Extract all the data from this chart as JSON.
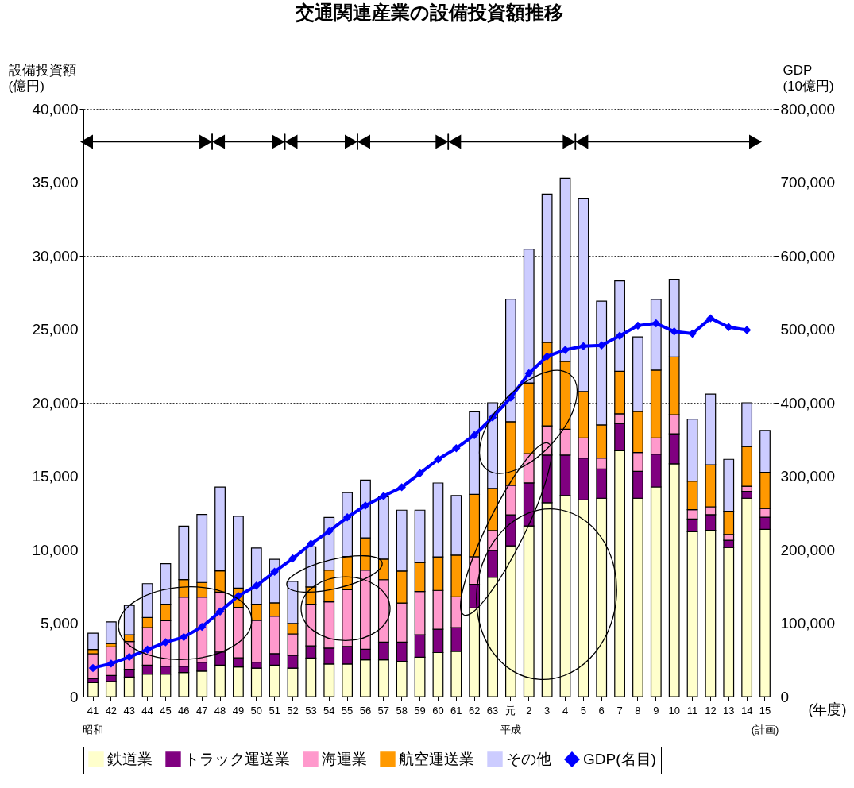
{
  "chart_data": {
    "type": "bar",
    "title": "交通関連産業の設備投資額推移",
    "ylabel": "設備投資額\n(億円)",
    "y2label": "GDP\n(10億円)",
    "xlabel": "(年度)",
    "categories": [
      "41",
      "42",
      "43",
      "44",
      "45",
      "46",
      "47",
      "48",
      "49",
      "50",
      "51",
      "52",
      "53",
      "54",
      "55",
      "56",
      "57",
      "58",
      "59",
      "60",
      "61",
      "62",
      "63",
      "元",
      "2",
      "3",
      "4",
      "5",
      "6",
      "7",
      "8",
      "9",
      "10",
      "11",
      "12",
      "13",
      "14",
      "15"
    ],
    "stacked": true,
    "ylim": [
      0,
      40000
    ],
    "yticks": [
      {
        "value": 0,
        "label": "0"
      },
      {
        "value": 5000,
        "label": "5,000"
      },
      {
        "value": 10000,
        "label": "10,000"
      },
      {
        "value": 15000,
        "label": "15,000"
      },
      {
        "value": 20000,
        "label": "20,000"
      },
      {
        "value": 25000,
        "label": "25,000"
      },
      {
        "value": 30000,
        "label": "30,000"
      },
      {
        "value": 35000,
        "label": "35,000"
      },
      {
        "value": 40000,
        "label": "40,000"
      }
    ],
    "y2lim": [
      0,
      800000
    ],
    "y2ticks": [
      {
        "value": 0,
        "label": "0"
      },
      {
        "value": 100000,
        "label": "100,000"
      },
      {
        "value": 200000,
        "label": "200,000"
      },
      {
        "value": 300000,
        "label": "300,000"
      },
      {
        "value": 400000,
        "label": "400,000"
      },
      {
        "value": 500000,
        "label": "500,000"
      },
      {
        "value": 600000,
        "label": "600,000"
      },
      {
        "value": 700000,
        "label": "700,000"
      },
      {
        "value": 800000,
        "label": "800,000"
      }
    ],
    "grid": "y",
    "legend": "bottom",
    "marker": "diamond",
    "line_style": "solid",
    "series": [
      {
        "name": "鉄道業",
        "color": "#ffffcc",
        "values": [
          950,
          1030,
          1330,
          1530,
          1530,
          1640,
          1740,
          2140,
          2020,
          1940,
          2140,
          1940,
          2630,
          2220,
          2220,
          2510,
          2510,
          2400,
          2680,
          3000,
          3090,
          6040,
          8130,
          10260,
          11620,
          13200,
          13690,
          13380,
          13500,
          16740,
          13500,
          14270,
          15850,
          11220,
          11320,
          10150,
          13500,
          11390
        ]
      },
      {
        "name": "トラック運送業",
        "color": "#800080",
        "values": [
          290,
          410,
          530,
          610,
          540,
          430,
          610,
          900,
          620,
          410,
          790,
          870,
          820,
          1080,
          1200,
          710,
          1200,
          1310,
          1530,
          1590,
          1610,
          1610,
          1820,
          2110,
          2930,
          3240,
          2750,
          2860,
          1990,
          1850,
          1830,
          2230,
          2040,
          870,
          1060,
          490,
          470,
          820
        ]
      },
      {
        "name": "海運業",
        "color": "#ff99cc",
        "values": [
          1680,
          1940,
          1890,
          2560,
          3100,
          4700,
          4420,
          4070,
          3430,
          2840,
          2550,
          1460,
          2840,
          3150,
          3860,
          5400,
          4250,
          2660,
          2950,
          2640,
          2090,
          1870,
          1350,
          2020,
          1990,
          1990,
          1760,
          1360,
          750,
          660,
          1290,
          1100,
          1290,
          630,
          540,
          400,
          350,
          590
        ]
      },
      {
        "name": "航空運送業",
        "color": "#ff9900",
        "values": [
          290,
          230,
          460,
          690,
          1120,
          1200,
          1000,
          1450,
          1310,
          1100,
          900,
          710,
          1180,
          2170,
          2250,
          2180,
          1400,
          2180,
          1970,
          2280,
          2840,
          4240,
          2870,
          4320,
          4810,
          5680,
          4620,
          3170,
          2250,
          2890,
          2790,
          4620,
          3940,
          1950,
          2860,
          1570,
          2700,
          2460
        ]
      },
      {
        "name": "その他",
        "color": "#ccccff",
        "values": [
          1110,
          1480,
          2000,
          2300,
          2760,
          3630,
          4630,
          5700,
          4890,
          3830,
          2960,
          2870,
          2730,
          3580,
          4350,
          3940,
          4240,
          4140,
          3560,
          5030,
          4060,
          5620,
          5830,
          8330,
          9100,
          10090,
          12460,
          13150,
          8420,
          6150,
          5070,
          4810,
          5280,
          4220,
          4810,
          3540,
          2980,
          2860
        ]
      },
      {
        "name": "GDP(名目)",
        "color": "#0000ff",
        "type": "line",
        "axis": "y2",
        "values": [
          39000,
          45000,
          54000,
          64000,
          74000,
          81000,
          95000,
          116000,
          137000,
          151000,
          170000,
          188000,
          208000,
          225000,
          244000,
          260000,
          273000,
          285000,
          304000,
          323000,
          338000,
          356000,
          380000,
          407000,
          440000,
          463000,
          472000,
          477000,
          478000,
          491000,
          505000,
          508000,
          497000,
          494000,
          515000,
          503000,
          499000,
          null
        ]
      }
    ],
    "annotations": [
      "昭和",
      "平成",
      "(計画)"
    ]
  }
}
